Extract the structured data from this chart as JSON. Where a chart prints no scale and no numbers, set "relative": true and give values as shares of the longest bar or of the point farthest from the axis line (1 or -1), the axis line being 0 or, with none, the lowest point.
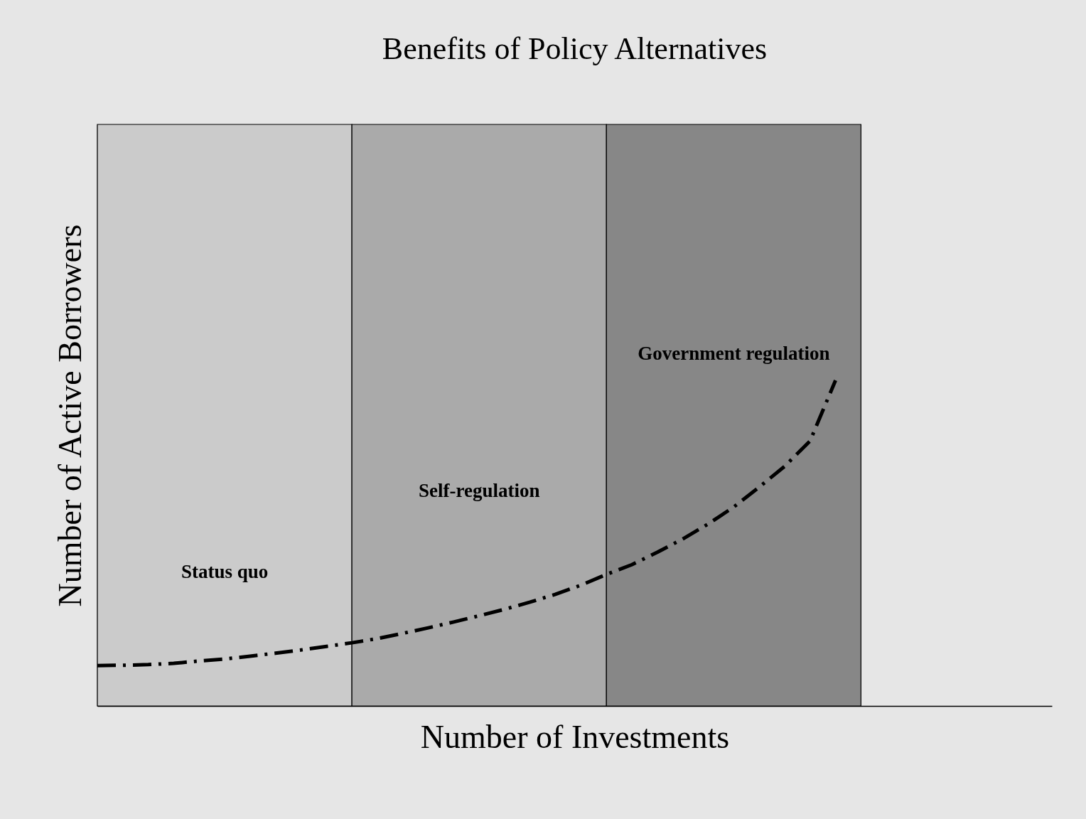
{
  "chart_data": {
    "type": "line",
    "title": "Benefits of Policy Alternatives",
    "xlabel": "Number of Investments",
    "ylabel": "Number of Active Borrowers",
    "relative": true,
    "line_style": "dashed",
    "categories": [
      null,
      null,
      null,
      null,
      null,
      null,
      null,
      null,
      null,
      null,
      null,
      null,
      null,
      null,
      null,
      null,
      null,
      null,
      null,
      null,
      null,
      null,
      null,
      null,
      null,
      null,
      null,
      null,
      null,
      null
    ],
    "series": [
      {
        "color": "#000000",
        "values": [
          0.124,
          0.125,
          0.127,
          0.131,
          0.138,
          0.144,
          0.153,
          0.162,
          0.172,
          0.183,
          0.194,
          0.207,
          0.223,
          0.24,
          0.258,
          0.277,
          0.297,
          0.319,
          0.343,
          0.371,
          0.404,
          0.434,
          0.472,
          0.513,
          0.559,
          0.611,
          0.672,
          0.736,
          0.814,
          1.0
        ]
      }
    ],
    "annotations": [
      "Status quo",
      "Self-regulation",
      "Government regulation"
    ]
  }
}
